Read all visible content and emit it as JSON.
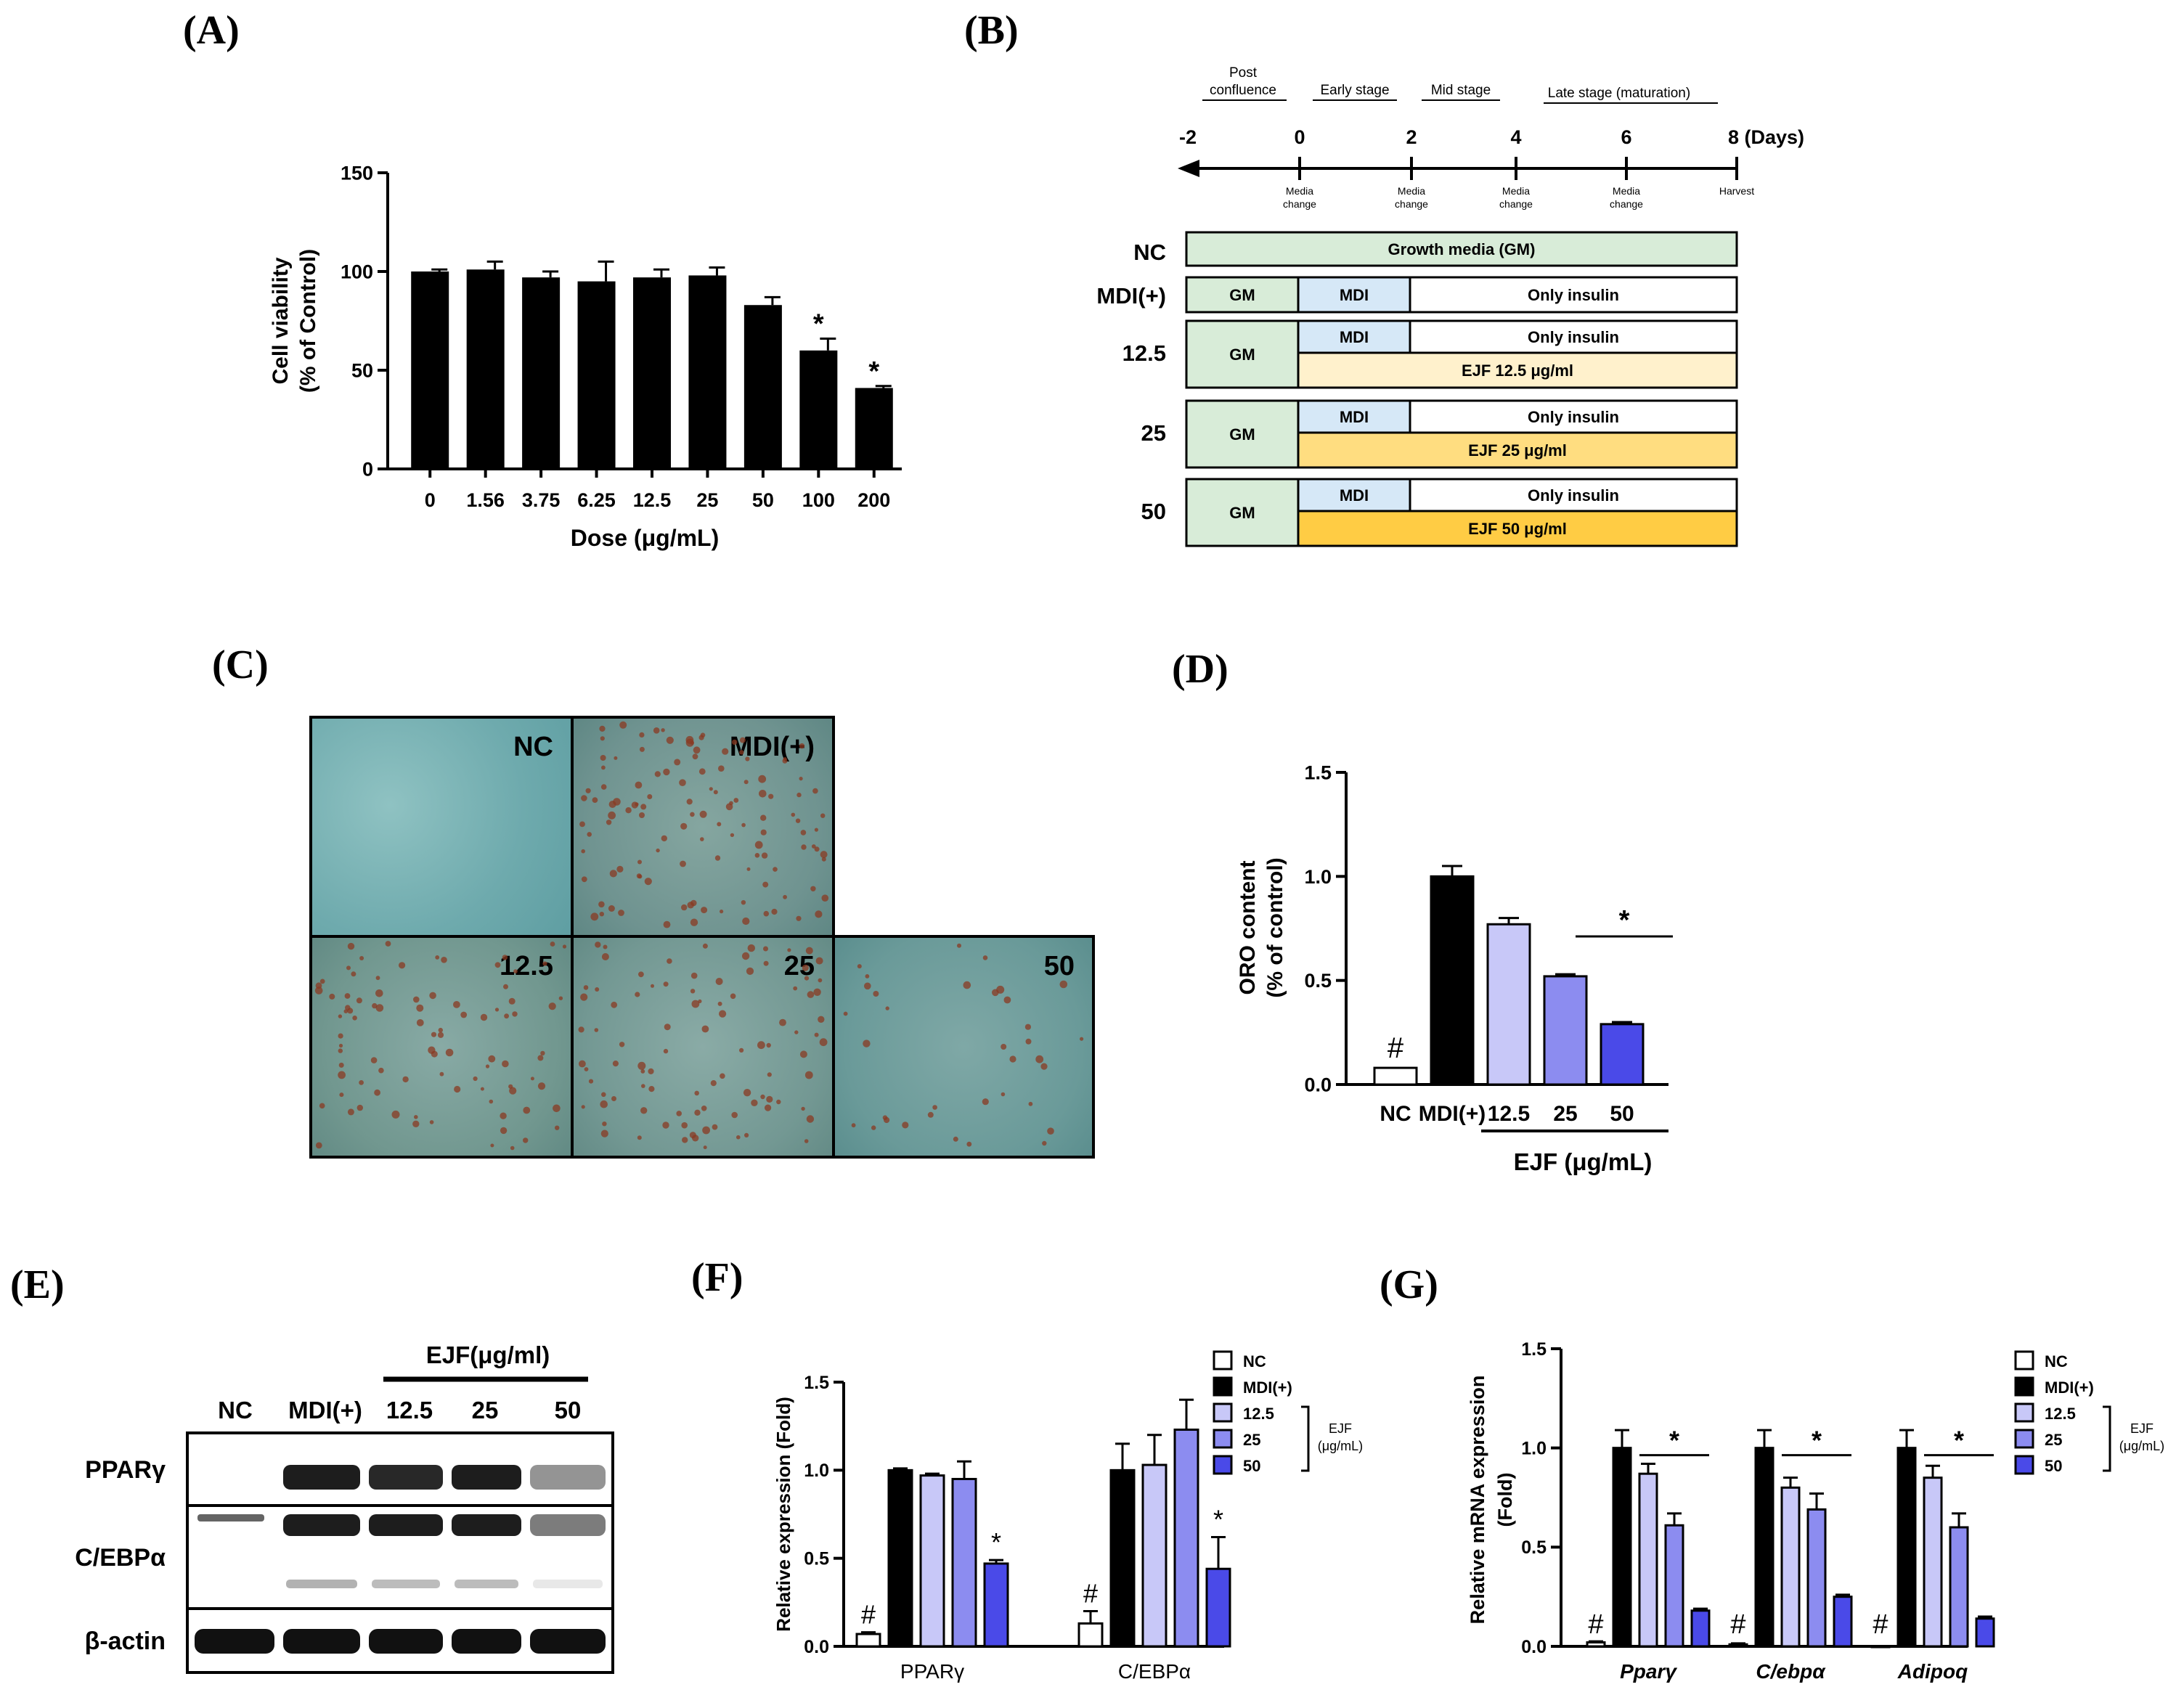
{
  "panel_labels": {
    "a": "(A)",
    "b": "(B)",
    "c": "(C)",
    "d": "(D)",
    "e": "(E)",
    "f": "(F)",
    "g": "(G)"
  },
  "colors": {
    "black": "#000000",
    "nc": "#ffffff",
    "mdi": "#000000",
    "c125": "#c8c8f8",
    "c25": "#8c8cf0",
    "c50": "#4a4ae8",
    "gm": "#d8ecd8",
    "mdi_box": "#d6e8f7",
    "ejf125": "#fff1cc",
    "ejf25": "#ffdd80",
    "ejf50": "#ffcc44"
  },
  "chart_data": [
    {
      "id": "A",
      "type": "bar",
      "categories": [
        "0",
        "1.56",
        "3.75",
        "6.25",
        "12.5",
        "25",
        "50",
        "100",
        "200"
      ],
      "values": [
        100,
        101,
        97,
        95,
        97,
        98,
        83,
        60,
        41
      ],
      "errors": [
        1,
        4,
        3,
        10,
        4,
        4,
        4,
        6,
        1
      ],
      "significance": [
        "",
        "",
        "",
        "",
        "",
        "",
        "",
        "*",
        "*"
      ],
      "ylim": [
        0,
        150
      ],
      "yticks": [
        "0",
        "50",
        "100",
        "150"
      ],
      "ylabel": "Cell viability",
      "ylabel2": "(% of Control)",
      "xlabel": "Dose  (μg/mL)"
    },
    {
      "id": "D",
      "type": "bar",
      "categories": [
        "NC",
        "MDI(+)",
        "12.5",
        "25",
        "50"
      ],
      "values": [
        0.08,
        1.0,
        0.77,
        0.52,
        0.29
      ],
      "errors": [
        0,
        0.05,
        0.03,
        0.01,
        0.01
      ],
      "ylim": [
        0,
        1.5
      ],
      "yticks": [
        "0.0",
        "0.5",
        "1.0",
        "1.5"
      ],
      "ylabel": "ORO content",
      "ylabel2": "(% of control)",
      "group_label": "EJF (μg/mL)",
      "hash": "#",
      "star": "*"
    },
    {
      "id": "F",
      "type": "bar",
      "groups": [
        "PPARγ",
        "C/EBPα"
      ],
      "series": [
        {
          "name": "NC",
          "values": [
            0.07,
            0.13
          ],
          "errors": [
            0.01,
            0.07
          ]
        },
        {
          "name": "MDI(+)",
          "values": [
            1.0,
            1.0
          ],
          "errors": [
            0.01,
            0.15
          ]
        },
        {
          "name": "12.5",
          "values": [
            0.97,
            1.03
          ],
          "errors": [
            0.01,
            0.17
          ]
        },
        {
          "name": "25",
          "values": [
            0.95,
            1.23
          ],
          "errors": [
            0.1,
            0.17
          ]
        },
        {
          "name": "50",
          "values": [
            0.47,
            0.44
          ],
          "errors": [
            0.02,
            0.18
          ]
        }
      ],
      "marks": [
        [
          "#",
          "",
          "",
          "",
          "*"
        ],
        [
          "#",
          "",
          "",
          "",
          "*"
        ]
      ],
      "ylim": [
        0,
        1.5
      ],
      "yticks": [
        "0.0",
        "0.5",
        "1.0",
        "1.5"
      ],
      "ylabel": "Relative expression (Fold)",
      "legend_bracket": "EJF",
      "legend_bracket2": "(μg/mL)"
    },
    {
      "id": "G",
      "type": "bar",
      "groups": [
        "Pparγ",
        "C/ebpα",
        "Adipoq"
      ],
      "series": [
        {
          "name": "NC",
          "values": [
            0.02,
            0.01,
            0.0
          ],
          "errors": [
            0.005,
            0.005,
            0
          ]
        },
        {
          "name": "MDI(+)",
          "values": [
            1.0,
            1.0,
            1.0
          ],
          "errors": [
            0.09,
            0.09,
            0.09
          ]
        },
        {
          "name": "12.5",
          "values": [
            0.87,
            0.8,
            0.85
          ],
          "errors": [
            0.05,
            0.05,
            0.06
          ]
        },
        {
          "name": "25",
          "values": [
            0.61,
            0.69,
            0.6
          ],
          "errors": [
            0.06,
            0.08,
            0.07
          ]
        },
        {
          "name": "50",
          "values": [
            0.18,
            0.25,
            0.14
          ],
          "errors": [
            0.01,
            0.01,
            0.01
          ]
        }
      ],
      "hash": "#",
      "star": "*",
      "ylim": [
        0,
        1.5
      ],
      "yticks": [
        "0.0",
        "0.5",
        "1.0",
        "1.5"
      ],
      "ylabel": "Relative mRNA expression",
      "ylabel2": "(Fold)",
      "legend_bracket": "EJF",
      "legend_bracket2": "(μg/mL)"
    }
  ],
  "timeline": {
    "stages": [
      "Post",
      "confluence",
      "Early stage",
      "Mid stage",
      "Late stage (maturation)"
    ],
    "days": [
      "-2",
      "0",
      "2",
      "4",
      "6",
      "8 (Days)"
    ],
    "events": [
      "Media",
      "change",
      "Harvest"
    ],
    "rows": [
      {
        "label": "NC",
        "full": "Growth media (GM)"
      },
      {
        "label": "MDI(+)",
        "gm": "GM",
        "mdi": "MDI",
        "insulin": "Only insulin"
      },
      {
        "label": "12.5",
        "gm": "GM",
        "mdi": "MDI",
        "insulin": "Only insulin",
        "ejf": "EJF 12.5 μg/ml"
      },
      {
        "label": "25",
        "gm": "GM",
        "mdi": "MDI",
        "insulin": "Only insulin",
        "ejf": "EJF  25 μg/ml"
      },
      {
        "label": "50",
        "gm": "GM",
        "mdi": "MDI",
        "insulin": "Only insulin",
        "ejf": "EJF  50 μg/ml"
      }
    ]
  },
  "micrographs": [
    "NC",
    "MDI(+)",
    "12.5",
    "25",
    "50"
  ],
  "western": {
    "group_label": "EJF(μg/ml)",
    "lanes": [
      "NC",
      "MDI(+)",
      "12.5",
      "25",
      "50"
    ],
    "proteins": [
      "PPARγ",
      "C/EBPα",
      "β-actin"
    ]
  }
}
